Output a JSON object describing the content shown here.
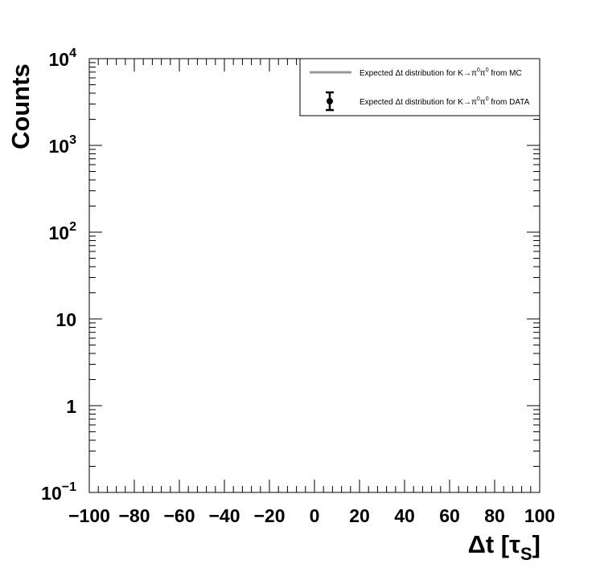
{
  "chart_data": {
    "type": "line",
    "title": "",
    "xlabel": "Δt [τS]",
    "xlabel_main": "Δt [τ",
    "xlabel_sub": "S",
    "xlabel_close": "]",
    "ylabel": "Counts",
    "xlim": [
      -100,
      100
    ],
    "ylim": [
      0.1,
      10000
    ],
    "y_scale": "log",
    "grid": false,
    "legend_placement": "top-right",
    "x_ticks": [
      -100,
      -80,
      -60,
      -40,
      -20,
      0,
      20,
      40,
      60,
      80,
      100
    ],
    "x_tick_labels": [
      "−100",
      "−80",
      "−60",
      "−40",
      "−20",
      "0",
      "20",
      "40",
      "60",
      "80",
      "100"
    ],
    "y_ticks": [
      {
        "value": 0.1,
        "base": "10",
        "exp": "−1"
      },
      {
        "value": 1,
        "base": "1",
        "exp": ""
      },
      {
        "value": 10,
        "base": "10",
        "exp": ""
      },
      {
        "value": 100,
        "base": "10",
        "exp": "2"
      },
      {
        "value": 1000,
        "base": "10",
        "exp": "3"
      },
      {
        "value": 10000,
        "base": "10",
        "exp": "4"
      }
    ],
    "series": [
      {
        "name": "Expected Δt distribution for K→π0π0 from MC",
        "name_pre": "Expected Δt distribution for K→π",
        "name_sup1": "0",
        "name_mid": "π",
        "name_sup2": "0",
        "name_post": " from MC",
        "style": "line",
        "color": "#999999",
        "x": [],
        "y": []
      },
      {
        "name": "Expected Δt distribution for K→π0π0 from DATA",
        "name_pre": "Expected Δt distribution for K→π",
        "name_sup1": "0",
        "name_mid": "π",
        "name_sup2": "0",
        "name_post": " from DATA",
        "style": "points-with-errors",
        "color": "#000000",
        "x": [],
        "y": []
      }
    ]
  }
}
